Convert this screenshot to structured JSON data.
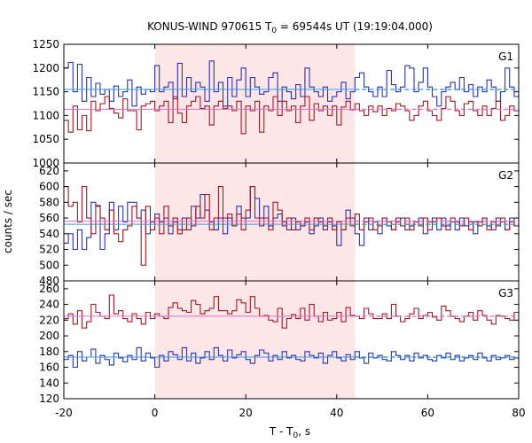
{
  "chart_data": {
    "type": "line",
    "title_main": "KONUS-WIND 970615 T",
    "title_sub": "0",
    "title_rest": " = 69544s UT (19:19:04.000)",
    "xlabel_main": "T - T",
    "xlabel_sub": "0",
    "xlabel_rest": ", s",
    "ylabel": "counts / sec",
    "xlim": [
      -20,
      80
    ],
    "xticks": [
      "-20",
      "0",
      "20",
      "40",
      "60",
      "80"
    ],
    "xtick_values": [
      -20,
      0,
      20,
      40,
      60,
      80
    ],
    "highlight_interval": [
      0,
      44
    ],
    "colors": {
      "blue": "#2b33a8",
      "red": "#a01822",
      "blue_mean": "#3d9be0",
      "red_mean": "#e070c8",
      "highlight": "#fde6e8",
      "axes": "#000000"
    },
    "panels": [
      {
        "label": "G1",
        "ylim": [
          1000,
          1250
        ],
        "yticks": [
          1000,
          1050,
          1100,
          1150,
          1200,
          1250
        ],
        "ytick_labels": [
          "1000",
          "1050",
          "1100",
          "1150",
          "1200",
          "1250"
        ],
        "series": [
          {
            "color": "blue",
            "values": [
              1200,
              1212,
              1150,
              1208,
              1130,
              1180,
              1140,
              1168,
              1145,
              1155,
              1130,
              1162,
              1140,
              1150,
              1175,
              1120,
              1160,
              1145,
              1155,
              1150,
              1205,
              1150,
              1160,
              1170,
              1135,
              1210,
              1140,
              1180,
              1150,
              1170,
              1160,
              1130,
              1215,
              1150,
              1170,
              1120,
              1180,
              1140,
              1175,
              1200,
              1140,
              1180,
              1160,
              1145,
              1150,
              1180,
              1190,
              1130,
              1160,
              1150,
              1135,
              1165,
              1140,
              1200,
              1160,
              1150,
              1140,
              1160,
              1130,
              1140,
              1150,
              1170,
              1135,
              1150,
              1180,
              1190,
              1160,
              1150,
              1140,
              1160,
              1140,
              1195,
              1165,
              1150,
              1160,
              1205,
              1200,
              1150,
              1170,
              1200,
              1160,
              1140,
              1120,
              1150,
              1160,
              1170,
              1155,
              1180,
              1150,
              1165,
              1140,
              1160,
              1150,
              1175,
              1160,
              1130,
              1150,
              1200,
              1160,
              1140
            ]
          },
          {
            "color": "red",
            "values": [
              1090,
              1065,
              1120,
              1070,
              1100,
              1068,
              1130,
              1110,
              1125,
              1140,
              1115,
              1105,
              1095,
              1135,
              1110,
              1110,
              1070,
              1120,
              1125,
              1130,
              1110,
              1120,
              1130,
              1085,
              1140,
              1105,
              1085,
              1120,
              1130,
              1140,
              1115,
              1120,
              1080,
              1120,
              1130,
              1115,
              1120,
              1110,
              1130,
              1062,
              1120,
              1110,
              1130,
              1065,
              1120,
              1110,
              1140,
              1100,
              1130,
              1110,
              1120,
              1085,
              1120,
              1140,
              1090,
              1125,
              1110,
              1120,
              1100,
              1120,
              1080,
              1118,
              1130,
              1112,
              1125,
              1110,
              1100,
              1120,
              1108,
              1120,
              1100,
              1115,
              1110,
              1125,
              1120,
              1110,
              1090,
              1100,
              1120,
              1130,
              1110,
              1100,
              1090,
              1115,
              1140,
              1130,
              1110,
              1100,
              1125,
              1130,
              1110,
              1100,
              1120,
              1100,
              1115,
              1130,
              1090,
              1100,
              1120,
              1110
            ]
          }
        ],
        "means": [
          {
            "color": "blue_mean",
            "value": 1155
          },
          {
            "color": "red_mean",
            "value": 1113
          }
        ]
      },
      {
        "label": "G2",
        "ylim": [
          480,
          630
        ],
        "yticks": [
          480,
          500,
          520,
          540,
          560,
          580,
          600,
          620
        ],
        "ytick_labels": [
          "480",
          "500",
          "520",
          "540",
          "560",
          "580",
          "600",
          "620"
        ],
        "series": [
          {
            "color": "blue",
            "values": [
              528,
              540,
              520,
              545,
              520,
              535,
              580,
              576,
              520,
              540,
              580,
              545,
              575,
              555,
              580,
              580,
              560,
              570,
              540,
              555,
              565,
              555,
              560,
              540,
              555,
              545,
              560,
              545,
              575,
              560,
              590,
              570,
              555,
              545,
              560,
              540,
              560,
              550,
              575,
              560,
              560,
              600,
              585,
              560,
              575,
              550,
              560,
              565,
              555,
              545,
              560,
              545,
              550,
              555,
              540,
              550,
              560,
              545,
              555,
              550,
              525,
              545,
              570,
              560,
              540,
              525,
              560,
              545,
              555,
              540,
              560,
              550,
              545,
              555,
              560,
              545,
              550,
              555,
              560,
              540,
              555,
              560,
              545,
              560,
              550,
              555,
              545,
              560,
              550,
              555,
              540,
              555,
              560,
              550,
              545,
              560,
              555,
              545,
              560,
              550
            ]
          },
          {
            "color": "red",
            "values": [
              600,
              575,
              580,
              555,
              600,
              560,
              540,
              575,
              560,
              545,
              570,
              540,
              530,
              545,
              550,
              575,
              560,
              500,
              575,
              545,
              560,
              540,
              575,
              550,
              560,
              540,
              545,
              560,
              550,
              575,
              560,
              590,
              545,
              560,
              600,
              560,
              565,
              550,
              565,
              545,
              570,
              600,
              560,
              550,
              560,
              545,
              580,
              570,
              550,
              560,
              545,
              555,
              550,
              560,
              545,
              560,
              555,
              550,
              560,
              545,
              555,
              545,
              560,
              550,
              565,
              545,
              555,
              560,
              545,
              550,
              560,
              555,
              545,
              560,
              550,
              560,
              545,
              555,
              550,
              560,
              545,
              555,
              560,
              550,
              545,
              560,
              555,
              550,
              560,
              545,
              555,
              550,
              560,
              545,
              555,
              550,
              560,
              545,
              555,
              550
            ]
          }
        ],
        "means": [
          {
            "color": "blue_mean",
            "value": 552
          },
          {
            "color": "red_mean",
            "value": 556
          }
        ]
      },
      {
        "label": "G3",
        "ylim": [
          120,
          270
        ],
        "yticks": [
          120,
          140,
          160,
          180,
          200,
          220,
          240,
          260
        ],
        "ytick_labels": [
          "120",
          "140",
          "160",
          "180",
          "200",
          "220",
          "240",
          "260"
        ],
        "series": [
          {
            "color": "blue",
            "values": [
              170,
              175,
              160,
              180,
              168,
              173,
              183,
              165,
              175,
              170,
              163,
              178,
              172,
              167,
              175,
              170,
              185,
              168,
              178,
              172,
              160,
              175,
              168,
              180,
              176,
              170,
              185,
              168,
              178,
              165,
              172,
              180,
              170,
              185,
              175,
              168,
              182,
              172,
              176,
              180,
              170,
              165,
              175,
              182,
              178,
              168,
              175,
              170,
              180,
              172,
              175,
              170,
              168,
              180,
              175,
              172,
              178,
              165,
              175,
              180,
              172,
              168,
              176,
              170,
              180,
              172,
              165,
              178,
              172,
              175,
              170,
              168,
              180,
              175,
              170,
              175,
              168,
              178,
              172,
              175,
              170,
              168,
              175,
              172,
              178,
              170,
              175,
              168,
              172,
              175,
              170,
              178,
              172,
              168,
              175,
              170,
              172,
              175,
              170,
              172
            ]
          },
          {
            "color": "red",
            "values": [
              222,
              228,
              215,
              232,
              210,
              218,
              240,
              230,
              225,
              222,
              252,
              228,
              232,
              222,
              218,
              228,
              222,
              215,
              230,
              222,
              228,
              225,
              222,
              236,
              242,
              235,
              232,
              230,
              245,
              240,
              228,
              232,
              235,
              250,
              232,
              232,
              228,
              232,
              246,
              242,
              230,
              250,
              235,
              225,
              226,
              220,
              218,
              235,
              210,
              222,
              227,
              222,
              235,
              220,
              240,
              225,
              218,
              230,
              220,
              222,
              230,
              218,
              236,
              226,
              225,
              222,
              235,
              228,
              222,
              222,
              228,
              222,
              240,
              225,
              218,
              222,
              228,
              235,
              222,
              226,
              230,
              224,
              220,
              238,
              232,
              225,
              222,
              218,
              225,
              230,
              220,
              232,
              226,
              220,
              215,
              226,
              225,
              222,
              220,
              230
            ]
          }
        ],
        "means": [
          {
            "color": "blue_mean",
            "value": 173
          },
          {
            "color": "red_mean",
            "value": 225
          }
        ]
      }
    ]
  }
}
